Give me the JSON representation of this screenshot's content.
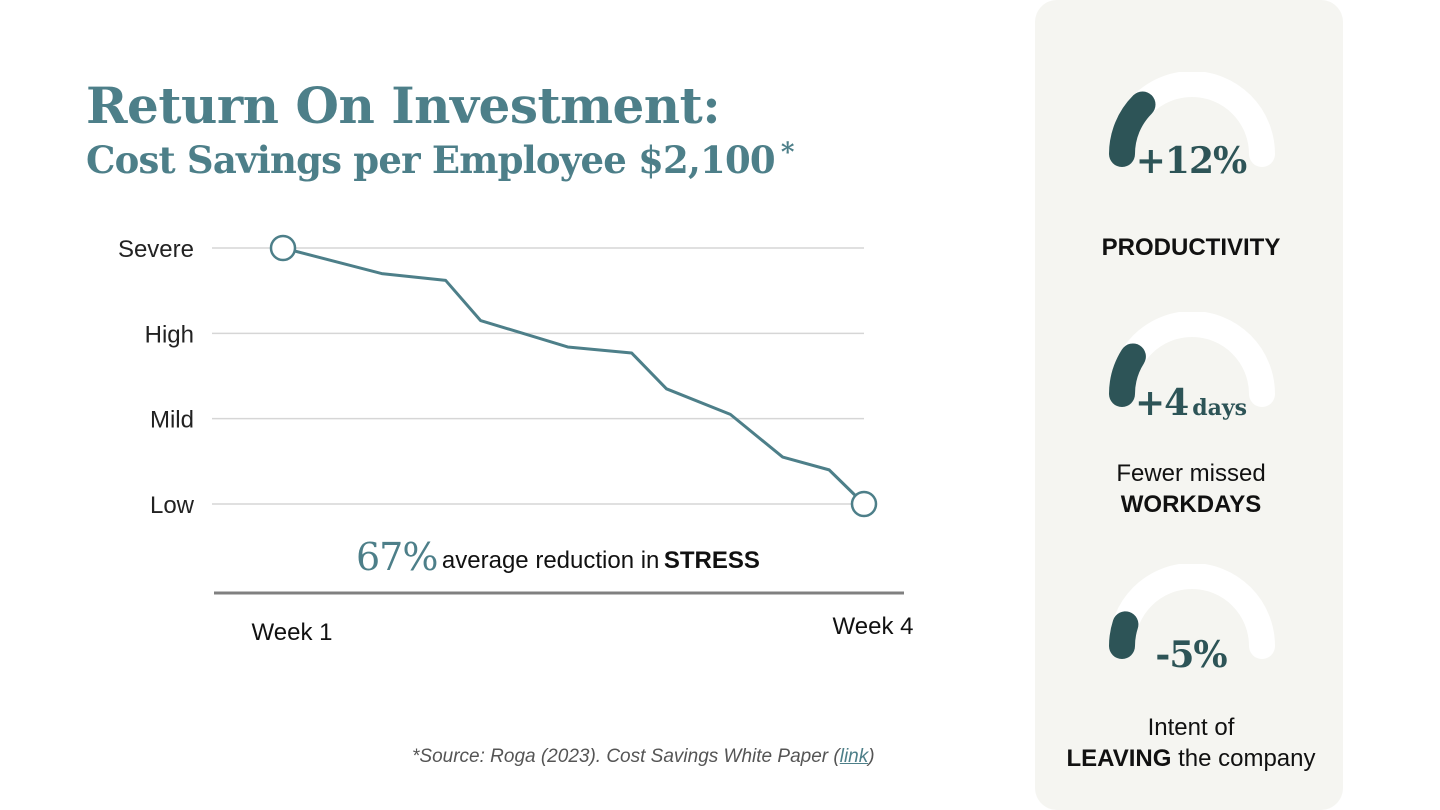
{
  "title": "Return On Investment:",
  "subtitle": "Cost Savings per Employee $2,100",
  "subtitle_mark": "*",
  "chart_data": {
    "type": "line",
    "y_levels": [
      "Low",
      "Mild",
      "High",
      "Severe"
    ],
    "x_labels": [
      "Week 1",
      "Week 4"
    ],
    "x_range": [
      0,
      1
    ],
    "y_range": [
      0,
      3
    ],
    "grid": true,
    "series": [
      {
        "x": [
          0,
          0.17,
          0.28,
          0.34,
          0.49,
          0.6,
          0.66,
          0.77,
          0.86,
          0.94,
          1.0
        ],
        "y": [
          3.0,
          2.7,
          2.62,
          2.15,
          1.84,
          1.77,
          1.35,
          1.05,
          0.55,
          0.4,
          0.0
        ],
        "color": "#4d7f89"
      }
    ],
    "markers": [
      "start",
      "end"
    ]
  },
  "stat": {
    "value": "67%",
    "text": "average reduction in",
    "strong": "STRESS"
  },
  "source": {
    "text": "*Source: Roga (2023). Cost Savings White Paper (",
    "link": "link",
    "close": ")"
  },
  "metrics": [
    {
      "value": "+12%",
      "unit": "",
      "fraction": 0.25,
      "label_plain": "",
      "label_bold": "PRODUCTIVITY",
      "label_tail": ""
    },
    {
      "value": "+4",
      "unit": "days",
      "fraction": 0.18,
      "label_plain": "Fewer missed",
      "label_bold": "WORKDAYS",
      "label_tail": ""
    },
    {
      "value": "-5%",
      "unit": "",
      "fraction": 0.1,
      "label_plain": "Intent of",
      "label_bold": "LEAVING",
      "label_tail": " the company"
    }
  ],
  "colors": {
    "accent": "#4d7f89",
    "gauge_fill": "#2d5457",
    "gauge_track": "#ffffff",
    "panel": "#f5f5f1"
  }
}
